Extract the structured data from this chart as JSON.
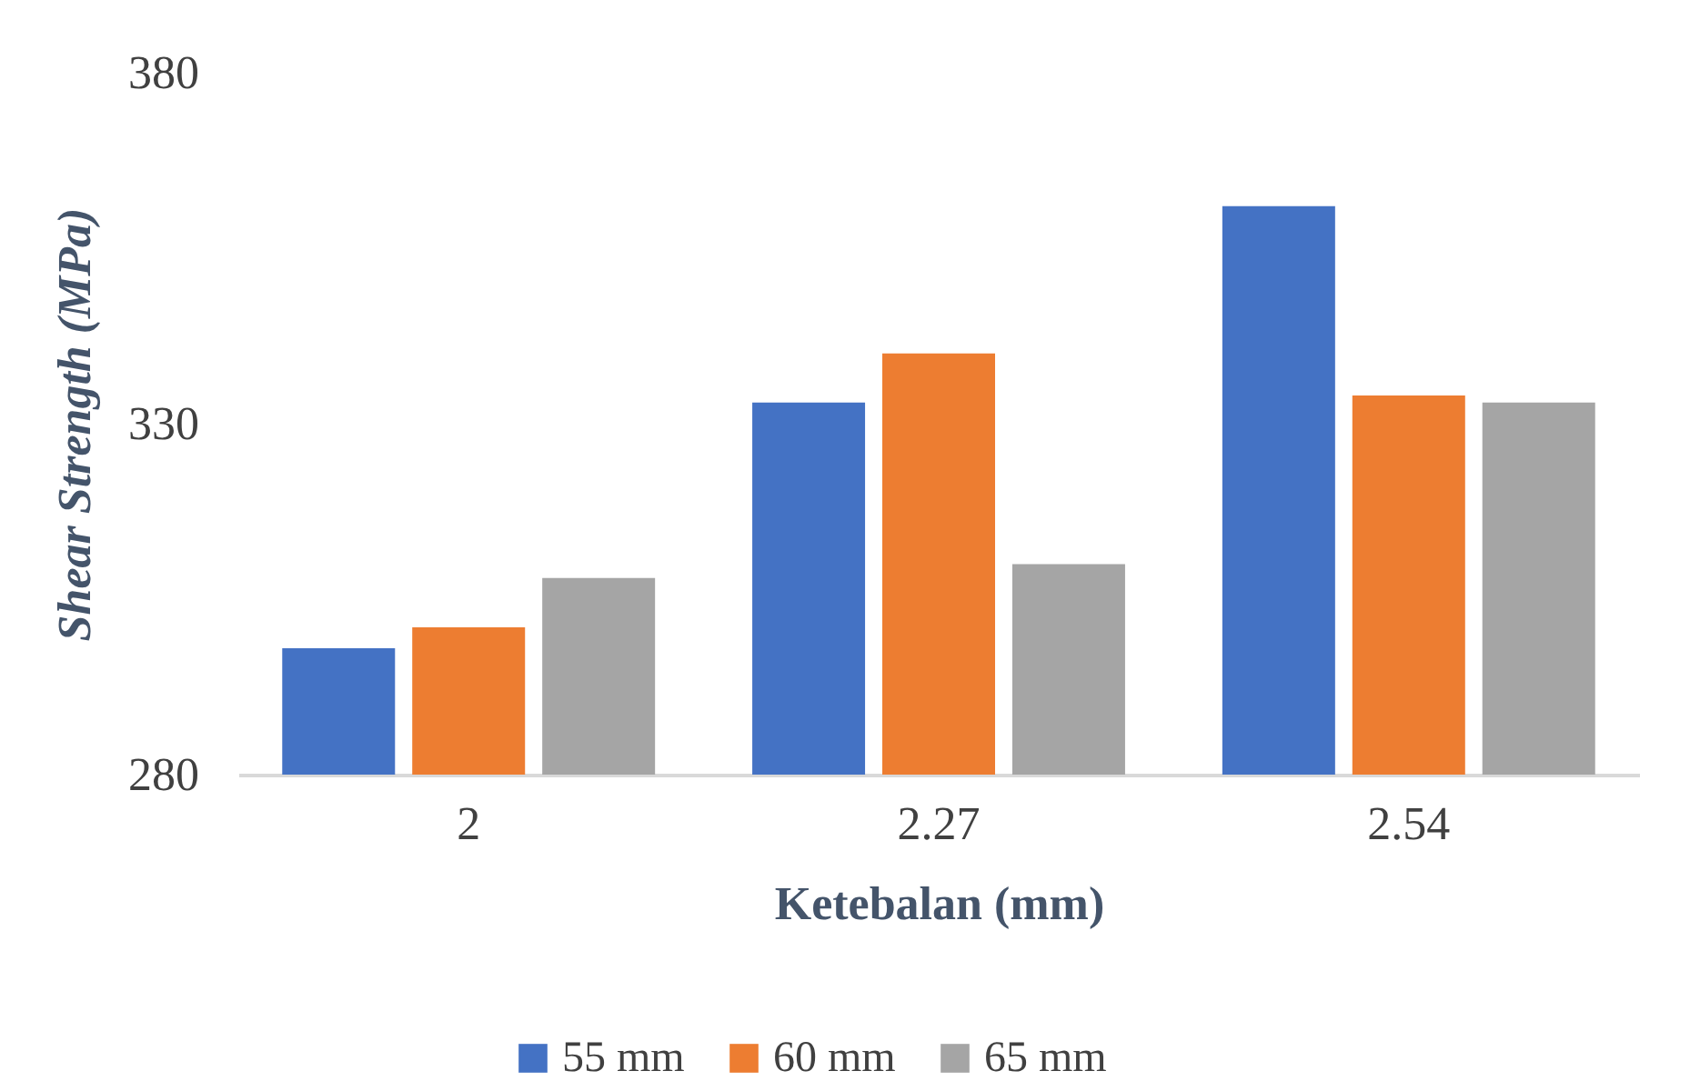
{
  "chart_data": {
    "type": "bar",
    "xlabel": "Ketebalan (mm)",
    "ylabel": "Shear Strength (MPa)",
    "categories": [
      "2",
      "2.27",
      "2.54"
    ],
    "series": [
      {
        "name": "55 mm",
        "color": "#4472c4",
        "values": [
          298,
          333,
          361
        ]
      },
      {
        "name": "60 mm",
        "color": "#ed7d31",
        "values": [
          301,
          340,
          334
        ]
      },
      {
        "name": "65 mm",
        "color": "#a5a5a5",
        "values": [
          308,
          310,
          333
        ]
      }
    ],
    "ylim": [
      280,
      380
    ],
    "yticks": [
      280,
      330,
      380
    ],
    "grid": false,
    "legend": "bottom"
  }
}
